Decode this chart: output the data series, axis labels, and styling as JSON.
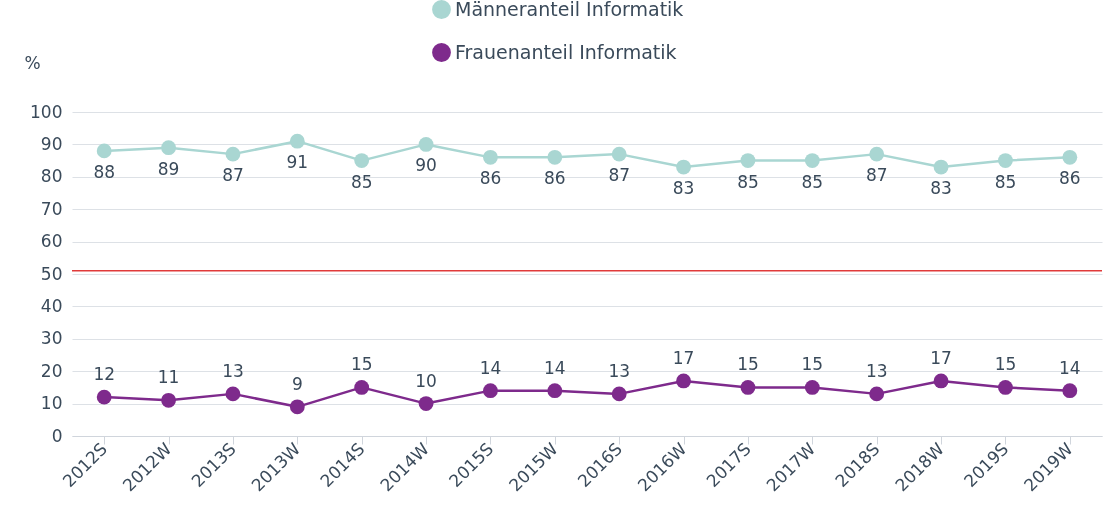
{
  "chart_data": {
    "type": "line",
    "ylabel": "%",
    "categories": [
      "2012S",
      "2012W",
      "2013S",
      "2013W",
      "2014S",
      "2014W",
      "2015S",
      "2015W",
      "2016S",
      "2016W",
      "2017S",
      "2017W",
      "2018S",
      "2018W",
      "2019S",
      "2019W"
    ],
    "series": [
      {
        "name": "Männeranteil Informatik",
        "color": "#a9d6d2",
        "values": [
          88,
          89,
          87,
          91,
          85,
          90,
          86,
          86,
          87,
          83,
          85,
          85,
          87,
          83,
          85,
          86
        ]
      },
      {
        "name": "Frauenanteil Informatik",
        "color": "#7e2a8c",
        "values": [
          12,
          11,
          13,
          9,
          15,
          10,
          14,
          14,
          13,
          17,
          15,
          15,
          13,
          17,
          15,
          14
        ]
      }
    ],
    "ylim": [
      0,
      100
    ],
    "yticks": [
      0,
      10,
      20,
      30,
      40,
      50,
      60,
      70,
      80,
      90,
      100
    ],
    "ref_lines": [
      {
        "axis": "y",
        "value": 51,
        "color": "#e03a3a"
      }
    ],
    "data_labels": true,
    "grid": "y",
    "legend": "top",
    "marker": "circle",
    "line_style": "solid"
  }
}
